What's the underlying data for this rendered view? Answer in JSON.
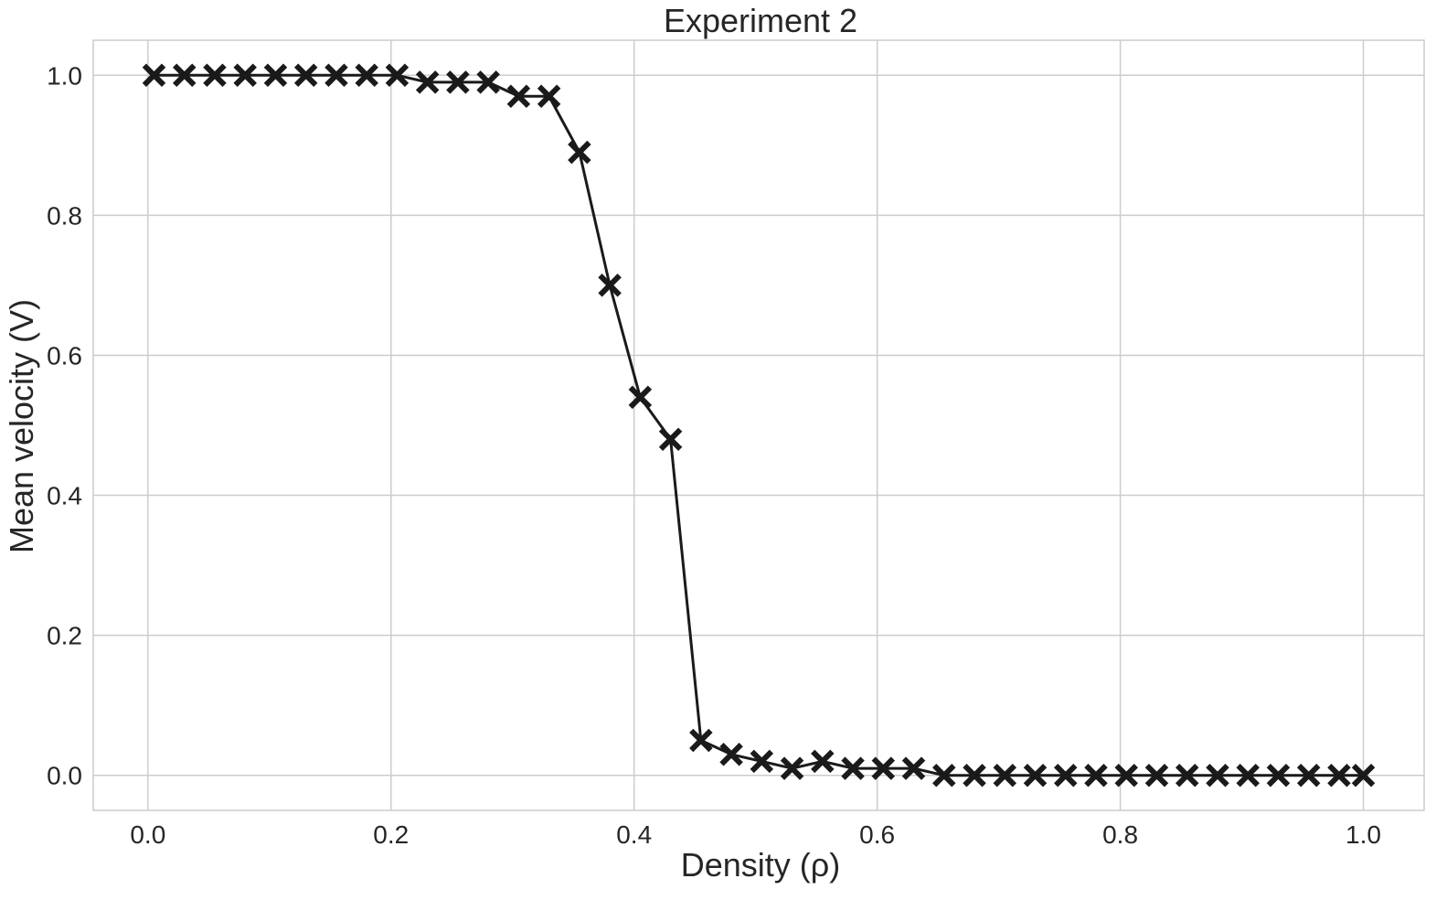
{
  "chart_data": {
    "type": "line",
    "title": "Experiment 2",
    "xlabel": "Density (ρ)",
    "ylabel": "Mean velocity (V)",
    "xlim": [
      -0.045,
      1.05
    ],
    "ylim": [
      -0.05,
      1.05
    ],
    "x_ticks": [
      "0.0",
      "0.2",
      "0.4",
      "0.6",
      "0.8",
      "1.0"
    ],
    "y_ticks": [
      "0.0",
      "0.2",
      "0.4",
      "0.6",
      "0.8",
      "1.0"
    ],
    "grid": true,
    "marker": "X",
    "line_color": "#1a1a1a",
    "grid_color": "#cccccc",
    "series": [
      {
        "x": [
          0.005,
          0.03,
          0.055,
          0.08,
          0.105,
          0.13,
          0.155,
          0.18,
          0.205,
          0.23,
          0.255,
          0.28,
          0.305,
          0.33,
          0.355,
          0.38,
          0.405,
          0.43,
          0.455,
          0.48,
          0.505,
          0.53,
          0.555,
          0.58,
          0.605,
          0.63,
          0.655,
          0.68,
          0.705,
          0.73,
          0.755,
          0.78,
          0.805,
          0.83,
          0.855,
          0.88,
          0.905,
          0.93,
          0.955,
          0.98,
          1.0
        ],
        "y": [
          1.0,
          1.0,
          1.0,
          1.0,
          1.0,
          1.0,
          1.0,
          1.0,
          1.0,
          0.99,
          0.99,
          0.99,
          0.97,
          0.97,
          0.89,
          0.7,
          0.54,
          0.48,
          0.05,
          0.03,
          0.02,
          0.01,
          0.02,
          0.01,
          0.01,
          0.01,
          0.0,
          0.0,
          0.0,
          0.0,
          0.0,
          0.0,
          0.0,
          0.0,
          0.0,
          0.0,
          0.0,
          0.0,
          0.0,
          0.0,
          0.0
        ]
      }
    ]
  }
}
